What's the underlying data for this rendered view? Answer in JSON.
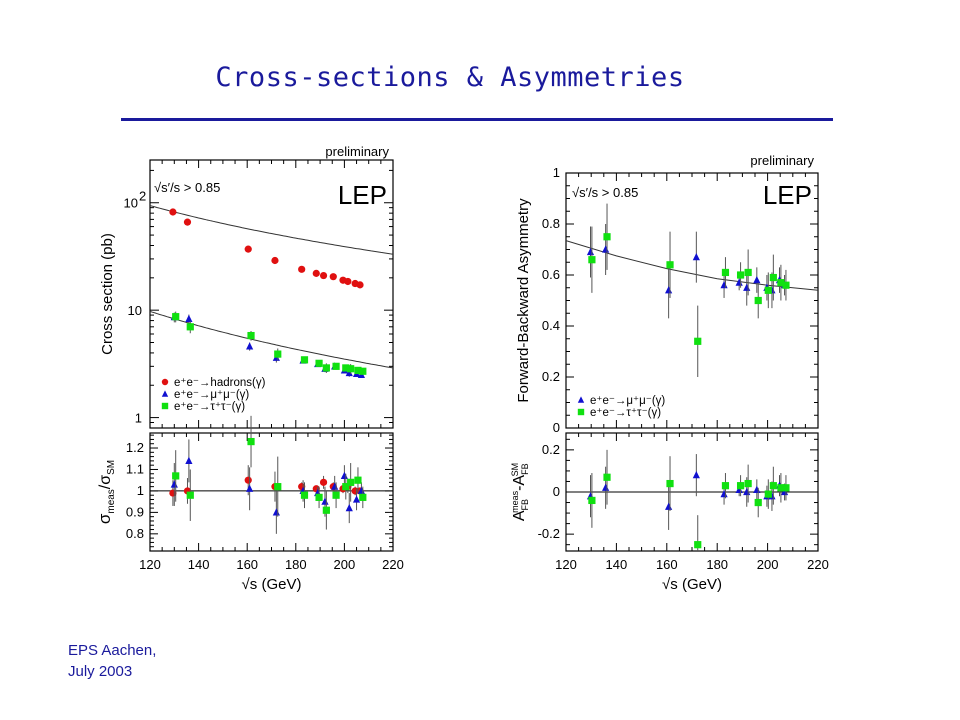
{
  "slide": {
    "title": "Cross-sections & Asymmetries",
    "footer_line1": "EPS Aachen,",
    "footer_line2": "July 2003"
  },
  "colors": {
    "title": "#1a1a9c",
    "hadrons": "#e01010",
    "mumu": "#1010d0",
    "tautau": "#10e010"
  },
  "chart_data": [
    {
      "type": "scatter",
      "panel": "cross-section",
      "yscale": "log",
      "title": "",
      "annotation_top": "preliminary",
      "annotation_lep": "LEP",
      "annotation_cut": "√s′/s > 0.85",
      "xlabel": "",
      "ylabel": "Cross section (pb)",
      "xlim": [
        120,
        220
      ],
      "ylim": [
        0.8,
        250
      ],
      "yticks": [
        {
          "v": 1,
          "label": "1"
        },
        {
          "v": 10,
          "label": "10"
        },
        {
          "v": 100,
          "label": "10²"
        }
      ],
      "legend_position": "bottom-left",
      "series": [
        {
          "name": "e⁺e⁻→hadrons(γ)",
          "marker": "circle",
          "color": "#e01010",
          "x": [
            130,
            136,
            161,
            172,
            183,
            189,
            192,
            196,
            200,
            202,
            205,
            207
          ],
          "y": [
            82,
            66,
            37,
            29,
            24,
            22,
            21,
            20.5,
            19,
            18.5,
            17.7,
            17.2
          ],
          "err": [
            5,
            4,
            2.5,
            2,
            0.7,
            0.5,
            1,
            0.7,
            0.6,
            1,
            0.6,
            0.5
          ],
          "curve": {
            "a": 82,
            "ref": 130,
            "p": 1.72
          }
        },
        {
          "name": "e⁺e⁻→μ⁺μ⁻(γ)",
          "marker": "triangle",
          "color": "#1010d0",
          "x": [
            130,
            136,
            161,
            172,
            183,
            189,
            192,
            196,
            200,
            202,
            205,
            207
          ],
          "y": [
            8.6,
            8.3,
            4.6,
            3.6,
            3.4,
            3.15,
            2.85,
            3.0,
            2.75,
            2.6,
            2.55,
            2.5
          ],
          "err": [
            0.9,
            0.8,
            0.4,
            0.35,
            0.15,
            0.1,
            0.2,
            0.15,
            0.12,
            0.2,
            0.12,
            0.1
          ],
          "curve": {
            "a": 8.3,
            "ref": 130,
            "p": 2.0
          }
        },
        {
          "name": "e⁺e⁻→τ⁺τ⁻(γ)",
          "marker": "square",
          "color": "#10e010",
          "x": [
            130,
            136,
            161,
            172,
            183,
            189,
            192,
            196,
            200,
            202,
            205,
            207
          ],
          "y": [
            8.7,
            7.0,
            5.8,
            3.9,
            3.45,
            3.2,
            2.9,
            3.0,
            2.9,
            2.85,
            2.75,
            2.7
          ],
          "err": [
            1.0,
            0.9,
            0.6,
            0.5,
            0.2,
            0.15,
            0.3,
            0.2,
            0.2,
            0.3,
            0.2,
            0.15
          ]
        }
      ]
    },
    {
      "type": "scatter",
      "panel": "cross-section ratio",
      "xlabel": "√s (GeV)",
      "ylabel": "σmeas/σSM",
      "xlim": [
        120,
        220
      ],
      "ylim": [
        0.72,
        1.27
      ],
      "xticks": [
        120,
        140,
        160,
        180,
        200,
        220
      ],
      "yticks": [
        {
          "v": 0.8,
          "label": "0.8"
        },
        {
          "v": 0.9,
          "label": "0.9"
        },
        {
          "v": 1.0,
          "label": "1"
        },
        {
          "v": 1.1,
          "label": "1.1"
        },
        {
          "v": 1.2,
          "label": "1.2"
        }
      ],
      "reference_line": 1.0,
      "series": [
        {
          "name": "e⁺e⁻→hadrons(γ)",
          "marker": "circle",
          "color": "#e01010",
          "x": [
            130,
            136,
            161,
            172,
            183,
            189,
            192,
            196,
            200,
            202,
            205,
            207
          ],
          "y": [
            0.99,
            1.0,
            1.05,
            1.02,
            1.02,
            1.01,
            1.04,
            1.02,
            1.01,
            1.02,
            1.0,
            1.0
          ],
          "err": [
            0.06,
            0.06,
            0.07,
            0.07,
            0.02,
            0.015,
            0.03,
            0.02,
            0.02,
            0.03,
            0.02,
            0.015
          ]
        },
        {
          "name": "e⁺e⁻→μ⁺μ⁻(γ)",
          "marker": "triangle",
          "color": "#1010d0",
          "x": [
            130,
            136,
            161,
            172,
            183,
            189,
            192,
            196,
            200,
            202,
            205,
            207
          ],
          "y": [
            1.03,
            1.14,
            1.01,
            0.9,
            1.0,
            0.99,
            0.95,
            1.02,
            1.07,
            0.92,
            0.96,
            1.0
          ],
          "err": [
            0.1,
            0.1,
            0.1,
            0.1,
            0.05,
            0.03,
            0.07,
            0.05,
            0.05,
            0.07,
            0.05,
            0.04
          ]
        },
        {
          "name": "e⁺e⁻→τ⁺τ⁻(γ)",
          "marker": "square",
          "color": "#10e010",
          "x": [
            130,
            136,
            161,
            172,
            183,
            189,
            192,
            196,
            200,
            202,
            205,
            207
          ],
          "y": [
            1.07,
            0.98,
            1.23,
            1.02,
            0.98,
            0.97,
            0.91,
            0.98,
            1.02,
            1.04,
            1.05,
            0.97
          ],
          "err": [
            0.12,
            0.12,
            0.12,
            0.14,
            0.06,
            0.05,
            0.09,
            0.06,
            0.06,
            0.09,
            0.06,
            0.05
          ]
        }
      ]
    },
    {
      "type": "scatter",
      "panel": "forward-backward asymmetry",
      "title": "",
      "annotation_top": "preliminary",
      "annotation_lep": "LEP",
      "annotation_cut": "√s′/s > 0.85",
      "xlabel": "",
      "ylabel": "Forward-Backward Asymmetry",
      "xlim": [
        120,
        220
      ],
      "ylim": [
        0,
        1
      ],
      "yticks": [
        {
          "v": 0,
          "label": "0"
        },
        {
          "v": 0.2,
          "label": "0.2"
        },
        {
          "v": 0.4,
          "label": "0.4"
        },
        {
          "v": 0.6,
          "label": "0.6"
        },
        {
          "v": 0.8,
          "label": "0.8"
        },
        {
          "v": 1,
          "label": "1"
        }
      ],
      "legend_position": "bottom-left",
      "curve": {
        "x": [
          120,
          140,
          160,
          180,
          200,
          220
        ],
        "y": [
          0.735,
          0.675,
          0.625,
          0.585,
          0.56,
          0.54
        ]
      },
      "series": [
        {
          "name": "e⁺e⁻→μ⁺μ⁻(γ)",
          "marker": "triangle",
          "color": "#1010d0",
          "x": [
            130,
            136,
            161,
            172,
            183,
            189,
            192,
            196,
            200,
            202,
            205,
            207
          ],
          "y": [
            0.69,
            0.7,
            0.54,
            0.67,
            0.56,
            0.57,
            0.55,
            0.58,
            0.55,
            0.54,
            0.58,
            0.56
          ],
          "err": [
            0.1,
            0.1,
            0.11,
            0.1,
            0.05,
            0.03,
            0.07,
            0.05,
            0.05,
            0.07,
            0.05,
            0.04
          ]
        },
        {
          "name": "e⁺e⁻→τ⁺τ⁻(γ)",
          "marker": "square",
          "color": "#10e010",
          "x": [
            130,
            136,
            161,
            172,
            183,
            189,
            192,
            196,
            200,
            202,
            205,
            207
          ],
          "y": [
            0.66,
            0.75,
            0.64,
            0.34,
            0.61,
            0.6,
            0.61,
            0.5,
            0.54,
            0.59,
            0.57,
            0.56
          ],
          "err": [
            0.13,
            0.13,
            0.13,
            0.14,
            0.06,
            0.05,
            0.09,
            0.07,
            0.07,
            0.09,
            0.07,
            0.06
          ]
        }
      ]
    },
    {
      "type": "scatter",
      "panel": "asymmetry difference",
      "xlabel": "√s (GeV)",
      "ylabel": "AFB meas - AFB SM",
      "xlim": [
        120,
        220
      ],
      "ylim": [
        -0.28,
        0.28
      ],
      "xticks": [
        120,
        140,
        160,
        180,
        200,
        220
      ],
      "yticks": [
        {
          "v": -0.2,
          "label": "-0.2"
        },
        {
          "v": 0,
          "label": "0"
        },
        {
          "v": 0.2,
          "label": "0.2"
        }
      ],
      "reference_line": 0,
      "series": [
        {
          "name": "e⁺e⁻→μ⁺μ⁻(γ)",
          "marker": "triangle",
          "color": "#1010d0",
          "x": [
            130,
            136,
            161,
            172,
            183,
            189,
            192,
            196,
            200,
            202,
            205,
            207
          ],
          "y": [
            -0.02,
            0.02,
            -0.07,
            0.08,
            -0.01,
            0.01,
            0.0,
            0.01,
            -0.02,
            -0.02,
            0.03,
            0.0
          ],
          "err": [
            0.1,
            0.1,
            0.11,
            0.1,
            0.05,
            0.03,
            0.07,
            0.05,
            0.05,
            0.07,
            0.05,
            0.04
          ]
        },
        {
          "name": "e⁺e⁻→τ⁺τ⁻(γ)",
          "marker": "square",
          "color": "#10e010",
          "x": [
            130,
            136,
            161,
            172,
            183,
            189,
            192,
            196,
            200,
            202,
            205,
            207
          ],
          "y": [
            -0.04,
            0.07,
            0.04,
            -0.25,
            0.03,
            0.03,
            0.04,
            -0.05,
            -0.01,
            0.03,
            0.02,
            0.02
          ],
          "err": [
            0.13,
            0.13,
            0.13,
            0.14,
            0.06,
            0.05,
            0.09,
            0.07,
            0.07,
            0.09,
            0.07,
            0.06
          ]
        }
      ]
    }
  ]
}
